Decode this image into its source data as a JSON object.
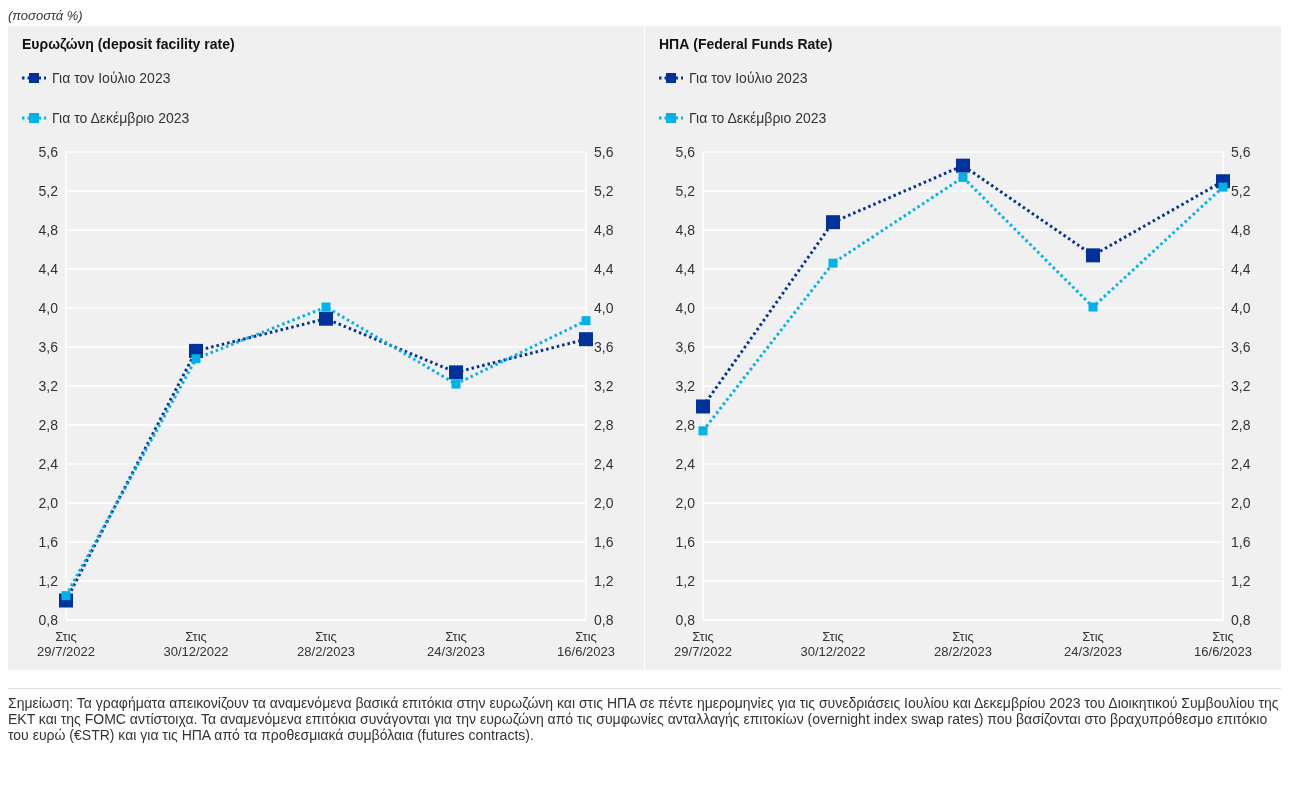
{
  "chart_data": [
    {
      "type": "line",
      "title": "Ευρωζώνη (deposit facility rate)",
      "subtitle": "(ποσοστά %)",
      "annotations": [
        "Σημείωση: Τα γραφήματα απεικονίζουν τα αναμενόμενα βασικά επιτόκια στην ευρωζώνη και στις ΗΠΑ σε πέντε ημερομηνίες για τις συνεδριάσεις Ιουλίου και Δεκεμβρίου 2023 του Διοικητικού Συμβουλίου της ΕΚΤ και της FOMC αντίστοιχα. Τα αναμενόμενα επιτόκια συνάγονται για την ευρωζώνη από τις συμφωνίες ανταλλαγής επιτοκίων (overnight index swap rates) που βασίζονται στο βραχυπρόθεσμο επιτόκιο του ευρώ (€STR) και για τις ΗΠΑ από τα προθεσμιακά συμβόλαια (futures contracts)."
      ],
      "categories": [
        "Στις 29/7/2022",
        "Στις 30/12/2022",
        "Στις 28/2/2023",
        "Στις 24/3/2023",
        "Στις 16/6/2023"
      ],
      "series": [
        {
          "name": "Για τον Ιούλιο 2023",
          "color": "#003299",
          "values": [
            1.0,
            3.56,
            3.89,
            3.34,
            3.68
          ]
        },
        {
          "name": "Για το Δεκέμβριο 2023",
          "color": "#00b1ea",
          "values": [
            1.05,
            3.48,
            4.01,
            3.22,
            3.87
          ]
        }
      ],
      "ylim": [
        0.8,
        5.6
      ],
      "yticks": [
        {
          "value": 0.8,
          "label": "0,8"
        },
        {
          "value": 1.2,
          "label": "1,2"
        },
        {
          "value": 1.6,
          "label": "1,6"
        },
        {
          "value": 2.0,
          "label": "2,0"
        },
        {
          "value": 2.4,
          "label": "2,4"
        },
        {
          "value": 2.8,
          "label": "2,8"
        },
        {
          "value": 3.2,
          "label": "3,2"
        },
        {
          "value": 3.6,
          "label": "3,6"
        },
        {
          "value": 4.0,
          "label": "4,0"
        },
        {
          "value": 4.4,
          "label": "4,4"
        },
        {
          "value": 4.8,
          "label": "4,8"
        },
        {
          "value": 5.2,
          "label": "5,2"
        },
        {
          "value": 5.6,
          "label": "5,6"
        }
      ],
      "y2lim": [
        0.8,
        5.6
      ],
      "y2ticks": [
        {
          "value": 0.8,
          "label": "0,8"
        },
        {
          "value": 1.2,
          "label": "1,2"
        },
        {
          "value": 1.6,
          "label": "1,6"
        },
        {
          "value": 2.0,
          "label": "2,0"
        },
        {
          "value": 2.4,
          "label": "2,4"
        },
        {
          "value": 2.8,
          "label": "2,8"
        },
        {
          "value": 3.2,
          "label": "3,2"
        },
        {
          "value": 3.6,
          "label": "3,6"
        },
        {
          "value": 4.0,
          "label": "4,0"
        },
        {
          "value": 4.4,
          "label": "4,4"
        },
        {
          "value": 4.8,
          "label": "4,8"
        },
        {
          "value": 5.2,
          "label": "5,2"
        },
        {
          "value": 5.6,
          "label": "5,6"
        }
      ],
      "grid": "y",
      "legend": "top left",
      "marker": "square",
      "line_style": "dotted"
    },
    {
      "type": "line",
      "title": "ΗΠΑ (Federal Funds Rate)",
      "categories": [
        "Στις 29/7/2022",
        "Στις 30/12/2022",
        "Στις 28/2/2023",
        "Στις 24/3/2023",
        "Στις 16/6/2023"
      ],
      "series": [
        {
          "name": "Για τον Ιούλιο 2023",
          "color": "#003299",
          "values": [
            2.99,
            4.88,
            5.46,
            4.54,
            5.3
          ]
        },
        {
          "name": "Για το Δεκέμβριο 2023",
          "color": "#00b1ea",
          "values": [
            2.74,
            4.46,
            5.34,
            4.01,
            5.24
          ]
        }
      ],
      "ylim": [
        0.8,
        5.6
      ],
      "yticks": [
        {
          "value": 0.8,
          "label": "0,8"
        },
        {
          "value": 1.2,
          "label": "1,2"
        },
        {
          "value": 1.6,
          "label": "1,6"
        },
        {
          "value": 2.0,
          "label": "2,0"
        },
        {
          "value": 2.4,
          "label": "2,4"
        },
        {
          "value": 2.8,
          "label": "2,8"
        },
        {
          "value": 3.2,
          "label": "3,2"
        },
        {
          "value": 3.6,
          "label": "3,6"
        },
        {
          "value": 4.0,
          "label": "4,0"
        },
        {
          "value": 4.4,
          "label": "4,4"
        },
        {
          "value": 4.8,
          "label": "4,8"
        },
        {
          "value": 5.2,
          "label": "5,2"
        },
        {
          "value": 5.6,
          "label": "5,6"
        }
      ],
      "y2lim": [
        0.8,
        5.6
      ],
      "y2ticks": [
        {
          "value": 0.8,
          "label": "0,8"
        },
        {
          "value": 1.2,
          "label": "1,2"
        },
        {
          "value": 1.6,
          "label": "1,6"
        },
        {
          "value": 2.0,
          "label": "2,0"
        },
        {
          "value": 2.4,
          "label": "2,4"
        },
        {
          "value": 2.8,
          "label": "2,8"
        },
        {
          "value": 3.2,
          "label": "3,2"
        },
        {
          "value": 3.6,
          "label": "3,6"
        },
        {
          "value": 4.0,
          "label": "4,0"
        },
        {
          "value": 4.4,
          "label": "4,4"
        },
        {
          "value": 4.8,
          "label": "4,8"
        },
        {
          "value": 5.2,
          "label": "5,2"
        },
        {
          "value": 5.6,
          "label": "5,6"
        }
      ],
      "grid": "y",
      "legend": "top left",
      "marker": "square",
      "line_style": "dotted"
    }
  ]
}
